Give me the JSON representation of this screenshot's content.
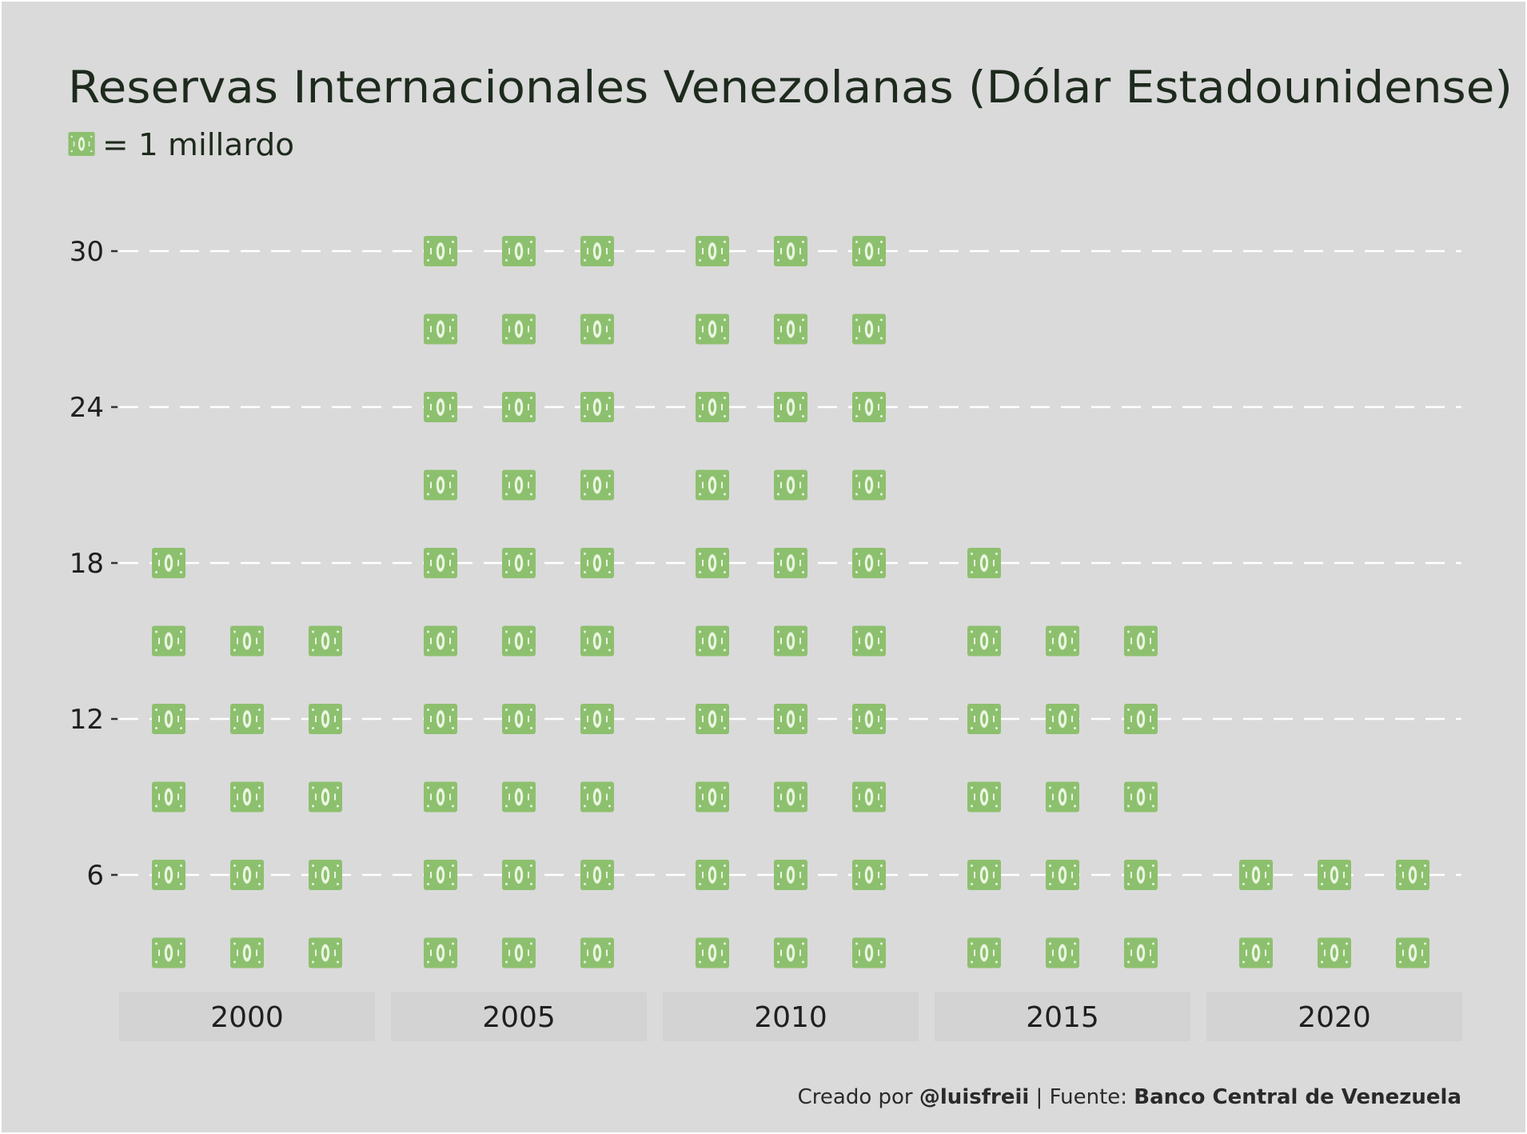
{
  "chart_data": {
    "type": "pictogram",
    "title": "Reservas Internacionales Venezolanas (Dólar Estadounidense)",
    "legend": {
      "icon": "banknote-icon",
      "text": "= 1 millardo",
      "unit_value": 1
    },
    "y_axis": {
      "ticks": [
        6,
        12,
        18,
        24,
        30
      ],
      "ylim": [
        0,
        32
      ]
    },
    "grid": true,
    "colors": {
      "background": "#dadada",
      "panel_strip": "#d3d3d3",
      "icon": "#8dc06e",
      "icon_detail": "#eaf5e2",
      "gridline": "#ffffff",
      "title": "#1d2a1d"
    },
    "icon_stack_step": 3,
    "x_panels": [
      {
        "label": "2000",
        "columns": [
          {
            "count": 6,
            "top_value": 18
          },
          {
            "count": 5,
            "top_value": 15
          },
          {
            "count": 5,
            "top_value": 15
          }
        ]
      },
      {
        "label": "2005",
        "columns": [
          {
            "count": 10,
            "top_value": 30
          },
          {
            "count": 10,
            "top_value": 30
          },
          {
            "count": 10,
            "top_value": 30
          }
        ]
      },
      {
        "label": "2010",
        "columns": [
          {
            "count": 10,
            "top_value": 30
          },
          {
            "count": 10,
            "top_value": 30
          },
          {
            "count": 10,
            "top_value": 30
          }
        ]
      },
      {
        "label": "2015",
        "columns": [
          {
            "count": 6,
            "top_value": 18
          },
          {
            "count": 5,
            "top_value": 15
          },
          {
            "count": 5,
            "top_value": 15
          }
        ]
      },
      {
        "label": "2020",
        "columns": [
          {
            "count": 2,
            "top_value": 6
          },
          {
            "count": 2,
            "top_value": 6
          },
          {
            "count": 2,
            "top_value": 6
          }
        ]
      }
    ],
    "caption": {
      "prefix": "Creado por ",
      "author": "@luisfreii",
      "middle": " | Fuente: ",
      "source": "Banco Central de Venezuela"
    }
  }
}
